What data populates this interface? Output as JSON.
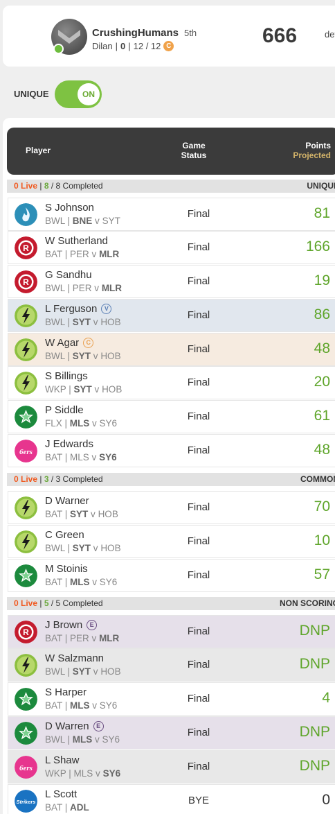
{
  "header": {
    "team_name": "CrushingHumans",
    "rank": "5th",
    "owner": "Dilan",
    "stat_a": "0",
    "stat_b": "12 / 12",
    "coin_label": "C",
    "score": "666",
    "trailing_text": "def",
    "online_color": "#6dbd3d"
  },
  "toggle": {
    "label": "UNIQUE",
    "state": "ON",
    "color": "#7ec242"
  },
  "table_header": {
    "player": "Player",
    "game_status_1": "Game",
    "game_status_2": "Status",
    "points": "Points",
    "projected": "Projected"
  },
  "sections": [
    {
      "live": "0 Live",
      "completed_count": "8",
      "completed_text": "/ 8 Completed",
      "tag": "UNIQUE"
    },
    {
      "live": "0 Live",
      "completed_count": "3",
      "completed_text": "/ 3 Completed",
      "tag": "COMMON"
    },
    {
      "live": "0 Live",
      "completed_count": "5",
      "completed_text": "/ 5 Completed",
      "tag": "NON SCORING"
    }
  ],
  "players": [
    {
      "name": "S Johnson",
      "role": "BWL",
      "team": "BNE",
      "opp": "SYT",
      "home_bold": "team",
      "status": "Final",
      "points": "81",
      "logo": "heat-icon",
      "badge": ""
    },
    {
      "name": "W Sutherland",
      "role": "BAT",
      "team": "PER",
      "opp": "MLR",
      "home_bold": "opp",
      "status": "Final",
      "points": "166",
      "logo": "renegades-icon",
      "badge": ""
    },
    {
      "name": "G Sandhu",
      "role": "BWL",
      "team": "PER",
      "opp": "MLR",
      "home_bold": "opp",
      "status": "Final",
      "points": "19",
      "logo": "renegades-icon",
      "badge": ""
    },
    {
      "name": "L Ferguson",
      "role": "BWL",
      "team": "SYT",
      "opp": "HOB",
      "home_bold": "team",
      "status": "Final",
      "points": "86",
      "logo": "thunder-icon",
      "badge": "V"
    },
    {
      "name": "W Agar",
      "role": "BWL",
      "team": "SYT",
      "opp": "HOB",
      "home_bold": "team",
      "status": "Final",
      "points": "48",
      "logo": "thunder-icon",
      "badge": "C"
    },
    {
      "name": "S Billings",
      "role": "WKP",
      "team": "SYT",
      "opp": "HOB",
      "home_bold": "team",
      "status": "Final",
      "points": "20",
      "logo": "thunder-icon",
      "badge": ""
    },
    {
      "name": "P Siddle",
      "role": "FLX",
      "team": "MLS",
      "opp": "SY6",
      "home_bold": "team",
      "status": "Final",
      "points": "61",
      "logo": "stars-icon",
      "badge": ""
    },
    {
      "name": "J Edwards",
      "role": "BAT",
      "team": "MLS",
      "opp": "SY6",
      "home_bold": "opp",
      "status": "Final",
      "points": "48",
      "logo": "sixers-icon",
      "badge": ""
    },
    {
      "name": "D Warner",
      "role": "BAT",
      "team": "SYT",
      "opp": "HOB",
      "home_bold": "team",
      "status": "Final",
      "points": "70",
      "logo": "thunder-icon",
      "badge": ""
    },
    {
      "name": "C Green",
      "role": "BWL",
      "team": "SYT",
      "opp": "HOB",
      "home_bold": "team",
      "status": "Final",
      "points": "10",
      "logo": "thunder-icon",
      "badge": ""
    },
    {
      "name": "M Stoinis",
      "role": "BAT",
      "team": "MLS",
      "opp": "SY6",
      "home_bold": "team",
      "status": "Final",
      "points": "57",
      "logo": "stars-icon",
      "badge": ""
    },
    {
      "name": "J Brown",
      "role": "BAT",
      "team": "PER",
      "opp": "MLR",
      "home_bold": "opp",
      "status": "Final",
      "points": "DNP",
      "logo": "renegades-icon",
      "badge": "E"
    },
    {
      "name": "W Salzmann",
      "role": "BWL",
      "team": "SYT",
      "opp": "HOB",
      "home_bold": "team",
      "status": "Final",
      "points": "DNP",
      "logo": "thunder-icon",
      "badge": ""
    },
    {
      "name": "S Harper",
      "role": "BAT",
      "team": "MLS",
      "opp": "SY6",
      "home_bold": "team",
      "status": "Final",
      "points": "4",
      "logo": "stars-icon",
      "badge": ""
    },
    {
      "name": "D Warren",
      "role": "BWL",
      "team": "MLS",
      "opp": "SY6",
      "home_bold": "team",
      "status": "Final",
      "points": "DNP",
      "logo": "stars-icon",
      "badge": "E"
    },
    {
      "name": "L Shaw",
      "role": "WKP",
      "team": "MLS",
      "opp": "SY6",
      "home_bold": "opp",
      "status": "Final",
      "points": "DNP",
      "logo": "sixers-icon",
      "badge": ""
    },
    {
      "name": "L Scott",
      "role": "BAT",
      "team": "ADL",
      "opp": "",
      "home_bold": "team",
      "status": "BYE",
      "points": "0",
      "logo": "strikers-icon",
      "badge": ""
    }
  ]
}
